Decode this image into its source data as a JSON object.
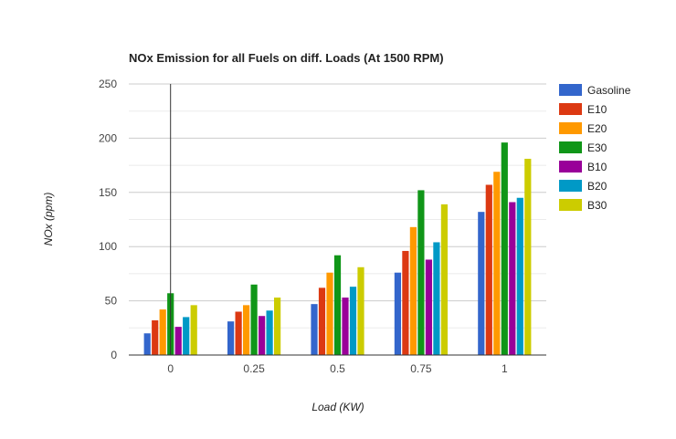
{
  "chart_data": {
    "type": "bar",
    "title": "NOx Emission for all Fuels on diff. Loads (At 1500 RPM)",
    "xlabel": "Load (KW)",
    "ylabel": "NOx (ppm)",
    "categories": [
      "0",
      "0.25",
      "0.5",
      "0.75",
      "1"
    ],
    "ylim": [
      0,
      250
    ],
    "yticks": [
      0,
      50,
      100,
      150,
      200,
      250
    ],
    "grid": true,
    "legend_position": "right",
    "series": [
      {
        "name": "Gasoline",
        "color": "#3366cc",
        "values": [
          20,
          31,
          47,
          76,
          132
        ]
      },
      {
        "name": "E10",
        "color": "#dc3912",
        "values": [
          32,
          40,
          62,
          96,
          157
        ]
      },
      {
        "name": "E20",
        "color": "#ff9900",
        "values": [
          42,
          46,
          76,
          118,
          169
        ]
      },
      {
        "name": "E30",
        "color": "#109618",
        "values": [
          57,
          65,
          92,
          152,
          196
        ]
      },
      {
        "name": "B10",
        "color": "#990099",
        "values": [
          26,
          36,
          53,
          88,
          141
        ]
      },
      {
        "name": "B20",
        "color": "#0099c6",
        "values": [
          35,
          41,
          63,
          104,
          145
        ]
      },
      {
        "name": "B30",
        "color": "#cccc00",
        "values": [
          46,
          53,
          81,
          139,
          181
        ]
      }
    ]
  }
}
